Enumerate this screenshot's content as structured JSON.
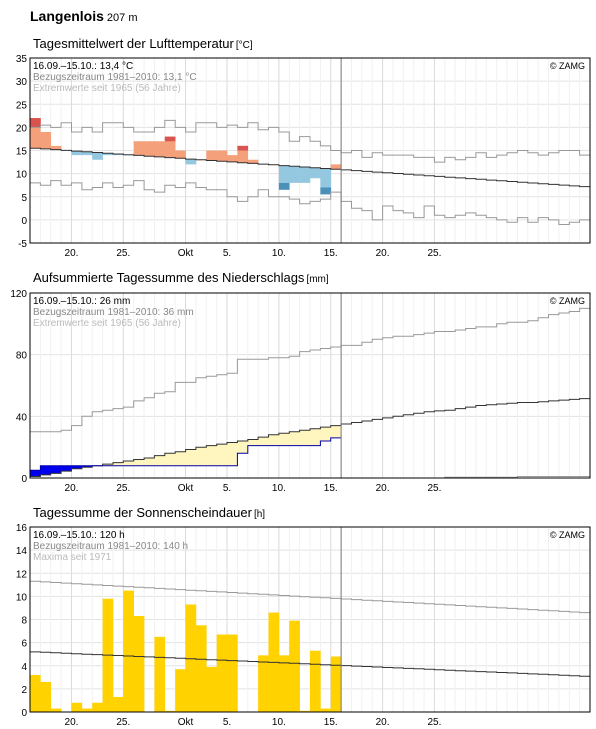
{
  "header": {
    "station": "Langenlois",
    "elevation": "207 m"
  },
  "colors": {
    "warm": "#F4A07A",
    "warm_extreme": "#D9534F",
    "cold": "#94C8E0",
    "cold_extreme": "#4A90B8",
    "precip_fill": "#FFF5BF",
    "precip_deficit": "#0000EE",
    "sun": "#FFD200"
  },
  "chart_data": [
    {
      "type": "line",
      "title": "Tagesmittelwert der Lufttemperatur",
      "unit": "[°C]",
      "watermark": "© ZAMG",
      "info": [
        "16.09.–15.10.: 13,4 °C",
        "Bezugszeitraum 1981–2010: 13,1 °C",
        "Extremwerte seit 1965 (56 Jahre)"
      ],
      "x_ticks": [
        "20.",
        "25.",
        "Okt",
        "5.",
        "10.",
        "15.",
        "20.",
        "25."
      ],
      "ylim": [
        -5,
        35
      ],
      "y_ticks": [
        "-5",
        "0",
        "5",
        "10",
        "15",
        "20",
        "25",
        "30",
        "35"
      ],
      "observed": [
        22,
        19,
        16,
        15,
        14,
        14,
        13,
        14,
        14,
        14,
        17,
        17,
        17,
        18,
        15,
        12,
        13,
        15,
        15,
        14,
        16,
        13,
        12,
        12,
        8,
        8,
        8,
        9,
        7,
        12
      ],
      "normal_start": 15.5,
      "normal_end": 7.2,
      "extreme_max": [
        20,
        20.5,
        20,
        21,
        19,
        20,
        19,
        21,
        21,
        20,
        19,
        19,
        20,
        21.5,
        20,
        19,
        21,
        21,
        20,
        20.5,
        20,
        21,
        19.5,
        20,
        19,
        17,
        18,
        17,
        16,
        15,
        14.5,
        15,
        13.5,
        14.5,
        14,
        14,
        14,
        13.5,
        13.5,
        12.5,
        13.5,
        13,
        13.5,
        14.5,
        13.5,
        14,
        14.5,
        15,
        14.5,
        14,
        14.5,
        15,
        15,
        14
      ],
      "extreme_min": [
        8,
        7.5,
        8.5,
        7.5,
        8,
        6.5,
        7,
        8,
        7,
        7.5,
        8.5,
        6.5,
        6,
        7.5,
        7,
        8,
        7,
        6.5,
        6.5,
        5,
        4,
        5,
        6.5,
        5,
        5,
        4.5,
        3.5,
        4,
        4.5,
        6,
        4,
        2.5,
        2,
        0,
        3,
        2,
        1.5,
        0.5,
        3,
        1,
        0.5,
        1,
        1.5,
        1,
        0.5,
        0,
        -0.5,
        0.5,
        -0.5,
        0.5,
        0,
        -1,
        -0.5,
        0
      ]
    },
    {
      "type": "area",
      "title": "Aufsummierte Tagessumme des Niederschlags",
      "unit": "[mm]",
      "watermark": "© ZAMG",
      "info": [
        "16.09.–15.10.: 26 mm",
        "Bezugszeitraum 1981–2010: 36 mm",
        "Extremwerte seit 1965 (56 Jahre)"
      ],
      "x_ticks": [
        "20.",
        "25.",
        "Okt",
        "5.",
        "10.",
        "15.",
        "20.",
        "25."
      ],
      "ylim": [
        0,
        120
      ],
      "y_ticks": [
        "0",
        "40",
        "80",
        "120"
      ],
      "observed_cum": [
        5,
        8,
        8,
        8,
        8,
        8,
        8,
        8,
        8,
        8,
        8,
        8,
        8,
        8,
        8,
        8,
        8,
        8,
        8,
        8,
        16,
        21,
        21,
        21,
        21,
        21,
        21,
        21,
        24,
        26
      ],
      "normal_cum": [
        1,
        2,
        3,
        4.5,
        6,
        7,
        8,
        9,
        10,
        11,
        12,
        13,
        14.5,
        16,
        17,
        18.5,
        20,
        21,
        22,
        23,
        24,
        25,
        26.5,
        28,
        29,
        30,
        31,
        32,
        33,
        34,
        35,
        36,
        37,
        38,
        39,
        40,
        41,
        42,
        43,
        43.5,
        44,
        45,
        46,
        47,
        47.5,
        48,
        48.5,
        49,
        49,
        49.5,
        50,
        50.5,
        51,
        51.5
      ],
      "extreme_max_cum": [
        30,
        30,
        30,
        31,
        34,
        40,
        43,
        44,
        45,
        46,
        50,
        52,
        55,
        56,
        62,
        62,
        65,
        66,
        67,
        68,
        77,
        77,
        77,
        78,
        78,
        79,
        82,
        83,
        84,
        85,
        86,
        86,
        88,
        90,
        91,
        92,
        92,
        93,
        94,
        95,
        95,
        96,
        97,
        98,
        98,
        100,
        101,
        101,
        102,
        104,
        106,
        107,
        108,
        110
      ],
      "extreme_min_cum": [
        0,
        0,
        0,
        0,
        0,
        0,
        0,
        0,
        0,
        0,
        0,
        0,
        0,
        0,
        0,
        0,
        0,
        0,
        0,
        0,
        0,
        0,
        0,
        0,
        0,
        0,
        0,
        0,
        0,
        0,
        0,
        0,
        0,
        0,
        0,
        0,
        0,
        0,
        0,
        0,
        0.5,
        0.5,
        0.5,
        0.5,
        0.5,
        0.5,
        0.5,
        1,
        1,
        1,
        1,
        1,
        1,
        1
      ]
    },
    {
      "type": "bar",
      "title": "Tagessumme der Sonnenscheindauer",
      "unit": "[h]",
      "watermark": "© ZAMG",
      "info": [
        "16.09.–15.10.: 120 h",
        "Bezugszeitraum 1981–2010: 140 h",
        "Maxima seit 1971"
      ],
      "x_ticks": [
        "20.",
        "25.",
        "Okt",
        "5.",
        "10.",
        "15.",
        "20.",
        "25."
      ],
      "ylim": [
        0,
        16
      ],
      "y_ticks": [
        "0",
        "2",
        "4",
        "6",
        "8",
        "10",
        "12",
        "14",
        "16"
      ],
      "values": [
        3.2,
        2.6,
        0.3,
        0,
        0.8,
        0.3,
        0.8,
        9.8,
        1.3,
        10.5,
        8.3,
        0,
        6.5,
        0.1,
        3.7,
        9.3,
        7.5,
        3.9,
        6.7,
        6.7,
        0,
        0,
        4.9,
        8.6,
        4.9,
        7.9,
        0.1,
        5.3,
        0.3,
        4.8
      ],
      "normal_start": 5.2,
      "normal_end": 3.1,
      "maxima_start": 11.3,
      "maxima_end": 8.6
    }
  ]
}
